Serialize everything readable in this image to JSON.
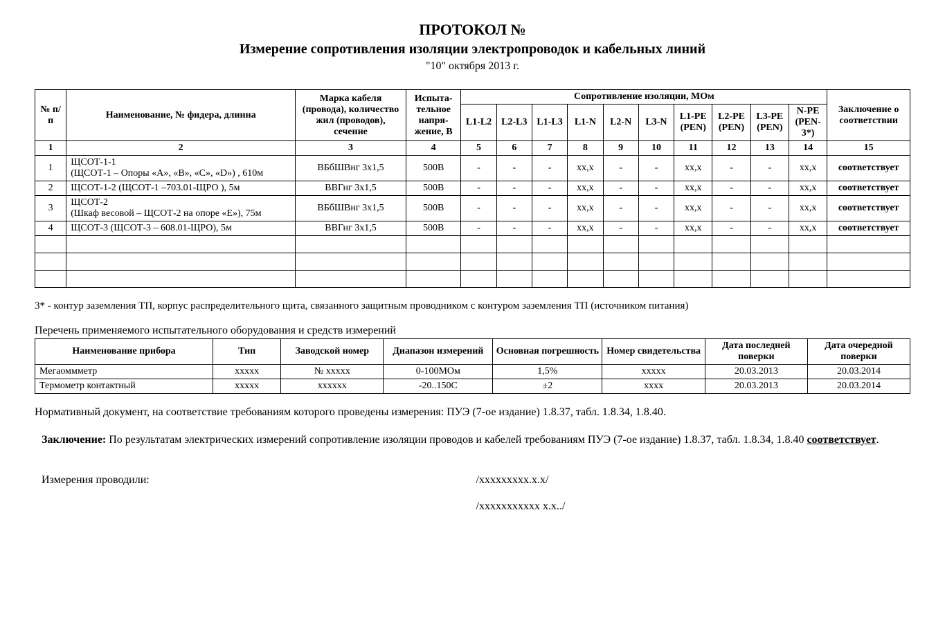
{
  "header": {
    "protocol_title": "ПРОТОКОЛ №",
    "subtitle": "Измерение сопротивления изоляции электропроводок и кабельных линий",
    "date": "\"10\" октября 2013 г."
  },
  "main_table": {
    "headers": {
      "num": "№ п/п",
      "name": "Наименование,\n№ фидера, длинна",
      "cable": "Марка кабеля (провода), количество жил (проводов), сечение",
      "voltage": "Испыта-\nтельное напря-\nжение, В",
      "resist_group": "Сопротивление изоляции, МОм",
      "l1l2": "L1-L2",
      "l2l3": "L2-L3",
      "l1l3": "L1-L3",
      "l1n": "L1-N",
      "l2n": "L2-N",
      "l3n": "L3-N",
      "l1pe": "L1-PE (PEN)",
      "l2pe": "L2-PE (PEN)",
      "l3pe": "L3-PE (PEN)",
      "npe": "N-PE (PEN-3*)",
      "concl": "Заключение о соответствии"
    },
    "colnums": [
      "1",
      "2",
      "3",
      "4",
      "5",
      "6",
      "7",
      "8",
      "9",
      "10",
      "11",
      "12",
      "13",
      "14",
      "15"
    ],
    "rows": [
      {
        "n": "1",
        "name": "ЩСОТ-1-1\n(ЩСОТ-1 – Опоры «А», «В», «С», «D») ,  610м",
        "cable": "ВБбШВнг 3х1,5",
        "volt": "500В",
        "l1l2": "-",
        "l2l3": "-",
        "l1l3": "-",
        "l1n": "хх,х",
        "l2n": "-",
        "l3n": "-",
        "l1pe": "хх,х",
        "l2pe": "-",
        "l3pe": "-",
        "npe": "хх,х",
        "concl": "соответствует"
      },
      {
        "n": "2",
        "name": "ЩСОТ-1-2  (ЩСОТ-1 –703.01-ЩРО ), 5м",
        "cable": "ВВГнг 3х1,5",
        "volt": "500В",
        "l1l2": "-",
        "l2l3": "-",
        "l1l3": "-",
        "l1n": "хх,х",
        "l2n": "-",
        "l3n": "-",
        "l1pe": "хх,х",
        "l2pe": "-",
        "l3pe": "-",
        "npe": "хх,х",
        "concl": "соответствует"
      },
      {
        "n": "3",
        "name": "ЩСОТ-2\n(Шкаф весовой – ЩСОТ-2 на опоре «Е»), 75м",
        "cable": "ВБбШВнг 3х1,5",
        "volt": "500В",
        "l1l2": "-",
        "l2l3": "-",
        "l1l3": "-",
        "l1n": "хх,х",
        "l2n": "-",
        "l3n": "-",
        "l1pe": "хх,х",
        "l2pe": "-",
        "l3pe": "-",
        "npe": "хх,х",
        "concl": "соответствует"
      },
      {
        "n": "4",
        "name": "ЩСОТ-3  (ЩСОТ-3 – 608.01-ЩРО),  5м",
        "cable": "ВВГнг 3х1,5",
        "volt": "500В",
        "l1l2": "-",
        "l2l3": "-",
        "l1l3": "-",
        "l1n": "хх,х",
        "l2n": "-",
        "l3n": "-",
        "l1pe": "хх,х",
        "l2pe": "-",
        "l3pe": "-",
        "npe": "хх,х",
        "concl": "соответствует"
      }
    ]
  },
  "footnote": "3* - контур заземления ТП, корпус распределительного щита, связанного защитным проводником с контуром заземления ТП (источником питания)",
  "equip_title": "Перечень применяемого испытательного оборудования и средств измерений",
  "equip_table": {
    "headers": {
      "name": "Наименование прибора",
      "type": "Тип",
      "serial": "Заводской номер",
      "range": "Диапазон измерений",
      "err": "Основная погрешность",
      "cert": "Номер свидетельства",
      "last": "Дата последней поверки",
      "next": "Дата очередной поверки"
    },
    "rows": [
      {
        "name": "Мегаоммметр",
        "type": "ххххх",
        "serial": "№ ххххх",
        "range": "0-100МОм",
        "err": "1,5%",
        "cert": "ххххх",
        "last": "20.03.2013",
        "next": "20.03.2014"
      },
      {
        "name": "Термометр контактный",
        "type": "ххххх",
        "serial": "хххххх",
        "range": "-20..150С",
        "err": "±2",
        "cert": "хххх",
        "last": "20.03.2013",
        "next": "20.03.2014"
      }
    ]
  },
  "normative": "Нормативный документ, на соответствие требованиям которого проведены измерения:  ПУЭ (7-ое издание) 1.8.37, табл. 1.8.34, 1.8.40.",
  "conclusion_label": "Заключение:",
  "conclusion_text": " По результатам электрических измерений сопротивление изоляции проводов и кабелей требованиям ПУЭ (7-ое издание) 1.8.37, табл. 1.8.34, 1.8.40 ",
  "conclusion_verdict": "соответствует",
  "signatures": {
    "label": "Измерения проводили:",
    "sig1": "/ххххххххх.х.х/",
    "sig2": "/ххххххххххх х.х../"
  }
}
